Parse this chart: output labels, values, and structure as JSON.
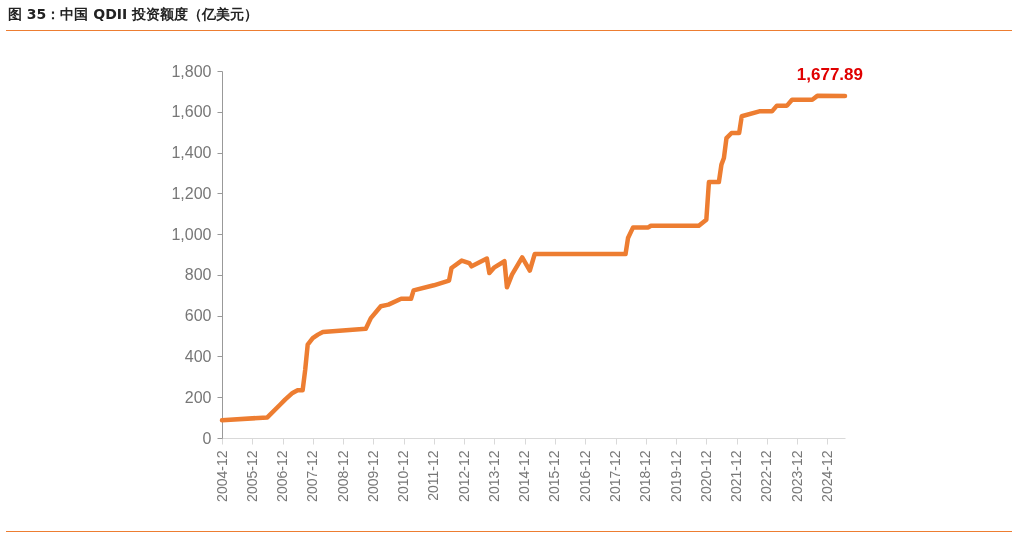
{
  "chart_data": {
    "type": "line",
    "title": "图 35：中国 QDII 投资额度（亿美元）",
    "x": [
      "2004-12",
      "2006-06",
      "2006-11",
      "2007-01",
      "2007-04",
      "2007-06",
      "2007-08",
      "2007-09",
      "2007-10",
      "2007-12",
      "2008-02",
      "2008-04",
      "2009-09",
      "2009-11",
      "2010-03",
      "2010-06",
      "2010-11",
      "2011-03",
      "2011-04",
      "2011-12",
      "2012-06",
      "2012-07",
      "2012-11",
      "2013-02",
      "2013-03",
      "2013-09",
      "2013-10",
      "2013-12",
      "2014-04",
      "2014-05",
      "2014-07",
      "2014-11",
      "2015-02",
      "2015-04",
      "2018-04",
      "2018-05",
      "2018-07",
      "2019-01",
      "2019-02",
      "2020-09",
      "2020-12",
      "2021-01",
      "2021-05",
      "2021-06",
      "2021-07",
      "2021-08",
      "2021-10",
      "2022-01",
      "2022-02",
      "2022-09",
      "2023-02",
      "2023-04",
      "2023-08",
      "2023-10",
      "2024-06",
      "2024-08",
      "2025-07"
    ],
    "series": [
      {
        "color": "#ed7d31",
        "values": [
          87,
          101,
          163,
          188,
          221,
          234,
          234,
          335,
          458,
          490,
          507,
          520,
          536,
          588,
          646,
          654,
          683,
          683,
          724,
          749,
          772,
          834,
          870,
          858,
          842,
          880,
          809,
          837,
          867,
          739,
          801,
          886,
          821,
          902,
          902,
          981,
          1033,
          1033,
          1041,
          1041,
          1071,
          1255,
          1255,
          1341,
          1373,
          1471,
          1496,
          1496,
          1578,
          1602,
          1602,
          1630,
          1630,
          1659,
          1659,
          1678,
          1677.89
        ]
      }
    ],
    "xlim": [
      "2004-12",
      "2025-07"
    ],
    "xticks": [
      "2004-12",
      "2005-12",
      "2006-12",
      "2007-12",
      "2008-12",
      "2009-12",
      "2010-12",
      "2011-12",
      "2012-12",
      "2013-12",
      "2014-12",
      "2015-12",
      "2016-12",
      "2017-12",
      "2018-12",
      "2019-12",
      "2020-12",
      "2021-12",
      "2022-12",
      "2023-12",
      "2024-12"
    ],
    "ylim": [
      0,
      1800
    ],
    "yticks": [
      0,
      200,
      400,
      600,
      800,
      {
        "value": 1000,
        "label": "1,000"
      },
      {
        "value": 1200,
        "label": "1,200"
      },
      {
        "value": 1400,
        "label": "1,400"
      },
      {
        "value": 1600,
        "label": "1,600"
      },
      {
        "value": 1800,
        "label": "1,800"
      }
    ],
    "annotations": [
      {
        "text": "1,677.89",
        "x": "2025-07",
        "y": 1677.89
      }
    ]
  }
}
